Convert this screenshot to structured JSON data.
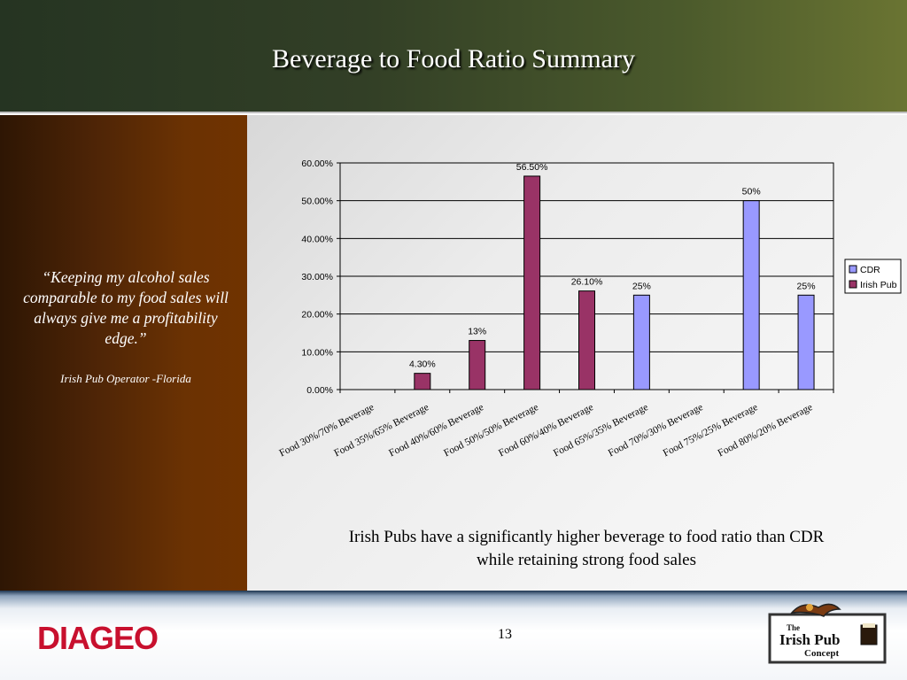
{
  "slide": {
    "title": "Beverage to Food Ratio Summary",
    "quote": "“Keeping my alcohol sales comparable to my food sales will always give me a profitability edge.”",
    "attribution": "Irish Pub Operator -Florida",
    "caption": "Irish Pubs have a significantly higher beverage to food ratio than CDR while retaining strong food sales",
    "page_number": "13",
    "logo_text": "DIAGEO",
    "badge_text": [
      "The",
      "Irish Pub",
      "Concept"
    ]
  },
  "colors": {
    "cdr": "#9999ff",
    "irish_pub": "#993366"
  },
  "chart_data": {
    "type": "bar",
    "categories": [
      "Food 30%/70% Beverage",
      "Food 35%/65% Beverage",
      "Food 40%/60% Beverage",
      "Food 50%/50% Beverage",
      "Food 60%/40% Beverage",
      "Food 65%/35% Beverage",
      "Food 70%/30% Beverage",
      "Food 75%/25% Beverage",
      "Food 80%/20% Beverage"
    ],
    "series": [
      {
        "name": "CDR",
        "values": [
          null,
          null,
          null,
          null,
          null,
          25,
          null,
          50,
          25
        ],
        "labels": [
          null,
          null,
          null,
          null,
          null,
          "25%",
          null,
          "50%",
          "25%"
        ]
      },
      {
        "name": "Irish Pub",
        "values": [
          null,
          4.3,
          13,
          56.5,
          26.1,
          null,
          null,
          null,
          null
        ],
        "labels": [
          null,
          "4.30%",
          "13%",
          "56.50%",
          "26.10%",
          null,
          null,
          null,
          null
        ]
      }
    ],
    "yticks": [
      "0.00%",
      "10.00%",
      "20.00%",
      "30.00%",
      "40.00%",
      "50.00%",
      "60.00%"
    ],
    "ylim": [
      0,
      60
    ],
    "grid": true,
    "legend": "right"
  }
}
